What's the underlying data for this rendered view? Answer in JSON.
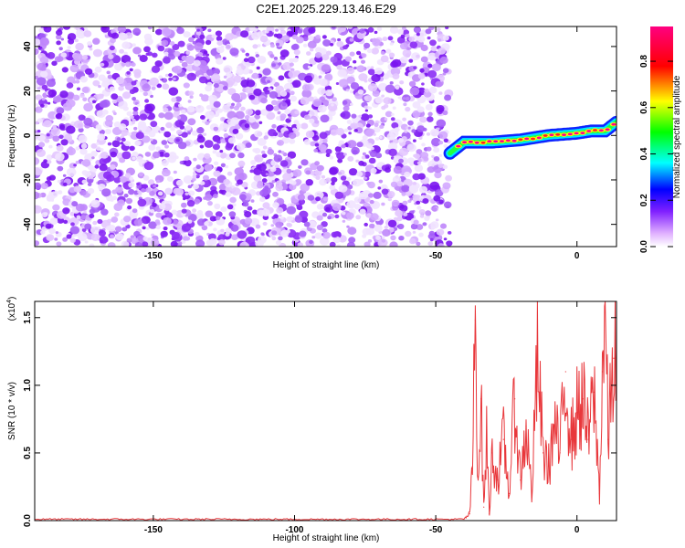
{
  "title": "C2E1.2025.229.13.46.E29",
  "chart_data": [
    {
      "type": "heatmap",
      "title": "C2E1.2025.229.13.46.E29",
      "xlabel": "Height of straight line (km)",
      "ylabel": "Frequency (Hz)",
      "xlim": [
        -192,
        14
      ],
      "ylim": [
        -50,
        49
      ],
      "xticks": [
        -150,
        -100,
        -50,
        0
      ],
      "yticks": [
        -40,
        -20,
        0,
        20,
        40
      ],
      "noise_region_x": [
        -192,
        -45
      ],
      "signal_track": {
        "x": [
          -45,
          -40,
          -30,
          -20,
          -10,
          0,
          5,
          10,
          14
        ],
        "frequency": [
          -8,
          -3,
          -3,
          -2,
          0,
          1,
          2,
          2,
          6
        ]
      },
      "colorbar": {
        "label": "Normalized spectral amplitude",
        "range": [
          0.0,
          0.95
        ],
        "ticks": [
          0.0,
          0.2,
          0.4,
          0.6,
          0.8
        ],
        "colormap": [
          "#ff00ff",
          "#0000ff",
          "#00ffff",
          "#00ff00",
          "#ffff00",
          "#ff0000",
          "#ff00aa"
        ]
      },
      "noise_color": "#8b2cf5"
    },
    {
      "type": "line",
      "xlabel": "Height of straight line (km)",
      "ylabel": "SNR (10 * v/v)",
      "y_multiplier": "(x10",
      "y_multiplier_exp": "4",
      "y_multiplier_close": ")",
      "xlim": [
        -192,
        14
      ],
      "ylim": [
        0,
        1.62
      ],
      "xticks": [
        -150,
        -100,
        -50,
        0
      ],
      "yticks": [
        0.0,
        0.5,
        1.0,
        1.5
      ],
      "series": [
        {
          "color": "#e8373b",
          "x": [
            -192,
            -60,
            -40,
            -38,
            -37,
            -36,
            -35,
            -34,
            -33,
            -32,
            -31,
            -30,
            -28,
            -26,
            -24,
            -22,
            -20,
            -18,
            -16,
            -14,
            -12,
            -10,
            -8,
            -6,
            -4,
            -2,
            0,
            2,
            4,
            6,
            8,
            9,
            10,
            11,
            12,
            13,
            14
          ],
          "y": [
            0.01,
            0.01,
            0.01,
            0.05,
            0.4,
            1.48,
            0.3,
            0.9,
            0.1,
            0.6,
            0.05,
            0.5,
            0.3,
            0.6,
            0.2,
            0.9,
            0.3,
            0.7,
            0.2,
            1.2,
            0.5,
            0.4,
            0.7,
            0.5,
            1.1,
            0.6,
            0.8,
            0.9,
            0.6,
            0.95,
            0.2,
            1.1,
            1.62,
            0.6,
            0.9,
            1.2,
            1.25
          ]
        }
      ]
    }
  ]
}
